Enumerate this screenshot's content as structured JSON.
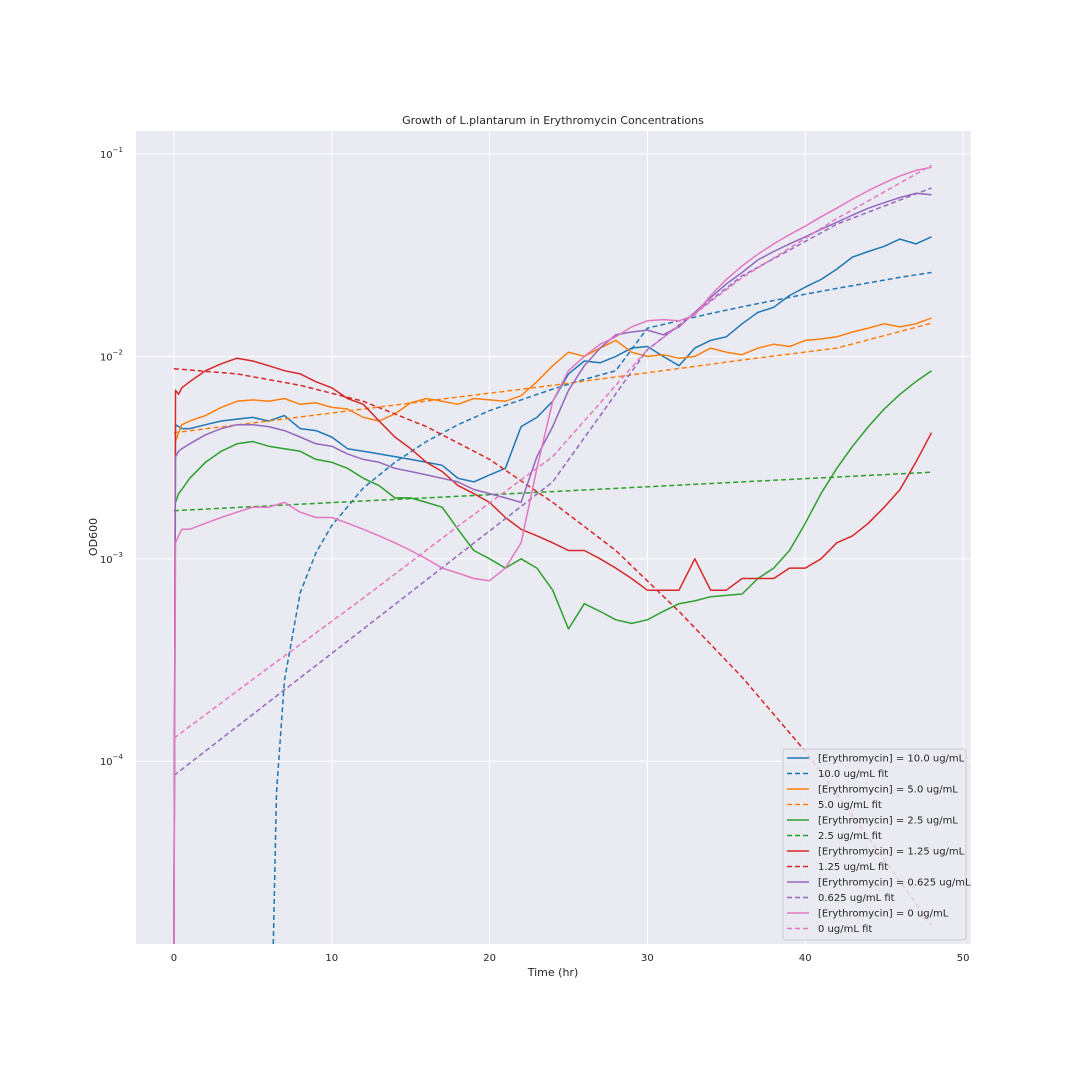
{
  "chart_data": {
    "type": "line",
    "title": "Growth of L.plantarum in Erythromycin Concentrations",
    "xlabel": "Time (hr)",
    "ylabel": "OD600",
    "xlim": [
      -2.4,
      50.5
    ],
    "ylim": [
      1.25e-05,
      0.13
    ],
    "y_scale": "log",
    "x_ticks": [
      0,
      10,
      20,
      30,
      40,
      50
    ],
    "x_tick_labels": [
      "0",
      "10",
      "20",
      "30",
      "40",
      "50"
    ],
    "y_ticks": [
      0.0001,
      0.001,
      0.01,
      0.1
    ],
    "y_tick_labels": [
      {
        "base": "10",
        "exp": "−4"
      },
      {
        "base": "10",
        "exp": "−3"
      },
      {
        "base": "10",
        "exp": "−2"
      },
      {
        "base": "10",
        "exp": "−1"
      }
    ],
    "grid": true,
    "legend_position": "lower right",
    "colors": {
      "blue": "#1f77b4",
      "orange": "#ff7f0e",
      "green": "#2ca02c",
      "red": "#d62728",
      "purple": "#9467bd",
      "pink": "#e377c2",
      "axes_bg": "#eaeaf2",
      "grid": "#ffffff"
    },
    "series": [
      {
        "name": "[Erythromycin] = 10.0 ug/mL",
        "color": "#1f77b4",
        "style": "solid",
        "x": [
          0,
          0.1,
          0.3,
          0.5,
          1,
          2,
          3,
          4,
          5,
          6,
          7,
          8,
          9,
          10,
          11,
          12,
          13,
          14,
          15,
          16,
          17,
          18,
          19,
          20,
          21,
          22,
          23,
          24,
          25,
          26,
          27,
          28,
          29,
          30,
          31,
          32,
          33,
          34,
          35,
          36,
          37,
          38,
          39,
          40,
          41,
          42,
          43,
          44,
          45,
          46,
          47,
          48
        ],
        "y": [
          1.25e-05,
          0.0046,
          0.0045,
          0.0044,
          0.0044,
          0.0046,
          0.0048,
          0.0049,
          0.005,
          0.0048,
          0.0051,
          0.0044,
          0.0043,
          0.004,
          0.0035,
          0.0034,
          0.0033,
          0.0032,
          0.0031,
          0.003,
          0.0029,
          0.0025,
          0.0024,
          0.0026,
          0.0028,
          0.0045,
          0.005,
          0.006,
          0.0082,
          0.0095,
          0.0093,
          0.01,
          0.011,
          0.0112,
          0.01,
          0.009,
          0.011,
          0.012,
          0.0125,
          0.0145,
          0.0165,
          0.0175,
          0.02,
          0.022,
          0.024,
          0.027,
          0.031,
          0.033,
          0.035,
          0.038,
          0.036,
          0.039
        ]
      },
      {
        "name": "10.0 ug/mL fit",
        "color": "#1f77b4",
        "style": "dashed",
        "x": [
          6.3,
          6.5,
          7,
          8,
          9,
          10,
          12,
          14,
          16,
          18,
          20,
          22,
          24,
          26,
          28,
          30,
          32,
          34,
          36,
          38,
          40,
          42,
          44,
          46,
          48
        ],
        "y": [
          1.25e-05,
          7e-05,
          0.00025,
          0.00068,
          0.00107,
          0.00146,
          0.00224,
          0.003,
          0.0038,
          0.0046,
          0.0054,
          0.0061,
          0.0069,
          0.0077,
          0.0085,
          0.0138,
          0.015,
          0.0163,
          0.0176,
          0.0189,
          0.0203,
          0.0217,
          0.0231,
          0.0246,
          0.026
        ]
      },
      {
        "name": "[Erythromycin] = 5.0 ug/mL",
        "color": "#ff7f0e",
        "style": "solid",
        "x": [
          0.1,
          0.3,
          0.5,
          1,
          2,
          3,
          4,
          5,
          6,
          7,
          8,
          9,
          10,
          11,
          12,
          13,
          14,
          15,
          16,
          17,
          18,
          19,
          20,
          21,
          22,
          23,
          24,
          25,
          26,
          27,
          28,
          29,
          30,
          31,
          32,
          33,
          34,
          35,
          36,
          37,
          38,
          39,
          40,
          41,
          42,
          43,
          44,
          45,
          46,
          47,
          48
        ],
        "y": [
          0.0038,
          0.0042,
          0.0046,
          0.0048,
          0.0051,
          0.0056,
          0.006,
          0.0061,
          0.006,
          0.0062,
          0.0058,
          0.0059,
          0.0056,
          0.0055,
          0.005,
          0.0048,
          0.0052,
          0.0059,
          0.0062,
          0.006,
          0.0058,
          0.0062,
          0.0061,
          0.006,
          0.0064,
          0.0075,
          0.009,
          0.0105,
          0.01,
          0.011,
          0.012,
          0.0105,
          0.01,
          0.0102,
          0.0098,
          0.01,
          0.011,
          0.0105,
          0.0102,
          0.011,
          0.0115,
          0.0112,
          0.012,
          0.0122,
          0.0125,
          0.0132,
          0.0138,
          0.0145,
          0.014,
          0.0145,
          0.0155
        ]
      },
      {
        "name": "5.0 ug/mL fit",
        "color": "#ff7f0e",
        "style": "dashed",
        "x": [
          0,
          6,
          12,
          18,
          24,
          30,
          36,
          42,
          48
        ],
        "y": [
          0.0042,
          0.0048,
          0.0055,
          0.0063,
          0.0072,
          0.0083,
          0.0096,
          0.011,
          0.0146
        ]
      },
      {
        "name": "[Erythromycin] = 2.5 ug/mL",
        "color": "#2ca02c",
        "style": "solid",
        "x": [
          0.1,
          0.3,
          0.5,
          1,
          2,
          3,
          4,
          5,
          6,
          7,
          8,
          9,
          10,
          11,
          12,
          13,
          14,
          15,
          16,
          17,
          18,
          19,
          20,
          21,
          22,
          23,
          24,
          25,
          26,
          27,
          28,
          29,
          30,
          31,
          32,
          33,
          34,
          35,
          36,
          37,
          38,
          39,
          40,
          41,
          42,
          43,
          44,
          45,
          46,
          47,
          48
        ],
        "y": [
          0.0019,
          0.0021,
          0.0022,
          0.0025,
          0.003,
          0.0034,
          0.0037,
          0.0038,
          0.0036,
          0.0035,
          0.0034,
          0.0031,
          0.003,
          0.0028,
          0.0025,
          0.0023,
          0.002,
          0.002,
          0.0019,
          0.0018,
          0.0014,
          0.0011,
          0.001,
          0.0009,
          0.001,
          0.0009,
          0.0007,
          0.00045,
          0.0006,
          0.00055,
          0.0005,
          0.00048,
          0.0005,
          0.00055,
          0.0006,
          0.00062,
          0.00065,
          0.00066,
          0.00067,
          0.0008,
          0.0009,
          0.0011,
          0.0015,
          0.0021,
          0.0028,
          0.0036,
          0.0045,
          0.0055,
          0.0065,
          0.0075,
          0.0085
        ]
      },
      {
        "name": "2.5 ug/mL fit",
        "color": "#2ca02c",
        "style": "dashed",
        "x": [
          0,
          12,
          24,
          36,
          48
        ],
        "y": [
          0.00173,
          0.00193,
          0.00215,
          0.0024,
          0.00268
        ]
      },
      {
        "name": "[Erythromycin] = 1.25 ug/mL",
        "color": "#d62728",
        "style": "solid",
        "x": [
          0,
          0.1,
          0.3,
          0.5,
          1,
          2,
          3,
          4,
          5,
          6,
          7,
          8,
          9,
          10,
          11,
          12,
          13,
          14,
          15,
          16,
          17,
          18,
          19,
          20,
          21,
          22,
          23,
          24,
          25,
          26,
          27,
          28,
          29,
          30,
          31,
          32,
          33,
          34,
          35,
          36,
          37,
          38,
          39,
          40,
          41,
          42,
          43,
          44,
          45,
          46,
          47,
          48
        ],
        "y": [
          1.25e-05,
          0.0068,
          0.0065,
          0.007,
          0.0075,
          0.0085,
          0.0092,
          0.0098,
          0.0095,
          0.009,
          0.0085,
          0.0082,
          0.0075,
          0.007,
          0.0062,
          0.0058,
          0.0048,
          0.004,
          0.0035,
          0.003,
          0.0027,
          0.0023,
          0.0021,
          0.0019,
          0.0016,
          0.0014,
          0.0013,
          0.0012,
          0.0011,
          0.0011,
          0.001,
          0.0009,
          0.0008,
          0.0007,
          0.0007,
          0.0007,
          0.001,
          0.0007,
          0.0007,
          0.0008,
          0.0008,
          0.0008,
          0.0009,
          0.0009,
          0.001,
          0.0012,
          0.0013,
          0.0015,
          0.0018,
          0.0022,
          0.003,
          0.0042
        ]
      },
      {
        "name": "1.25 ug/mL fit",
        "color": "#d62728",
        "style": "dashed",
        "x": [
          0,
          4,
          8,
          12,
          16,
          20,
          24,
          28,
          32,
          36,
          40,
          44,
          48
        ],
        "y": [
          0.0087,
          0.0082,
          0.0072,
          0.006,
          0.0045,
          0.0031,
          0.0019,
          0.0011,
          0.00055,
          0.00026,
          0.000112,
          4.2e-05,
          1.55e-05
        ]
      },
      {
        "name": "[Erythromycin] = 0.625 ug/mL",
        "color": "#9467bd",
        "style": "solid",
        "x": [
          0,
          0.1,
          0.3,
          0.5,
          1,
          2,
          3,
          4,
          5,
          6,
          7,
          8,
          9,
          10,
          11,
          12,
          13,
          14,
          15,
          16,
          17,
          18,
          19,
          20,
          21,
          22,
          23,
          24,
          25,
          26,
          27,
          28,
          29,
          30,
          31,
          32,
          33,
          34,
          35,
          36,
          37,
          38,
          39,
          40,
          41,
          42,
          43,
          44,
          45,
          46,
          47,
          48
        ],
        "y": [
          1.25e-05,
          0.0032,
          0.0034,
          0.0035,
          0.0037,
          0.0041,
          0.0044,
          0.0046,
          0.0046,
          0.0045,
          0.0043,
          0.004,
          0.0037,
          0.0036,
          0.0033,
          0.0031,
          0.003,
          0.0028,
          0.0027,
          0.0026,
          0.0025,
          0.0024,
          0.0022,
          0.0021,
          0.002,
          0.0019,
          0.0032,
          0.0045,
          0.0068,
          0.009,
          0.011,
          0.0128,
          0.0132,
          0.0135,
          0.0128,
          0.014,
          0.0165,
          0.0195,
          0.0228,
          0.026,
          0.03,
          0.033,
          0.036,
          0.039,
          0.0425,
          0.046,
          0.05,
          0.054,
          0.0575,
          0.061,
          0.064,
          0.063
        ]
      },
      {
        "name": "0.625 ug/mL fit",
        "color": "#9467bd",
        "style": "dashed",
        "x": [
          0,
          6,
          12,
          18,
          24,
          30,
          36,
          42,
          48
        ],
        "y": [
          8.5e-05,
          0.000196,
          0.00045,
          0.00104,
          0.0024,
          0.0108,
          0.025,
          0.045,
          0.068
        ]
      },
      {
        "name": "[Erythromycin] = 0 ug/mL",
        "color": "#e377c2",
        "style": "solid",
        "x": [
          0,
          0.1,
          0.3,
          0.5,
          1,
          2,
          3,
          4,
          5,
          6,
          7,
          8,
          9,
          10,
          11,
          12,
          13,
          14,
          15,
          16,
          17,
          18,
          19,
          20,
          21,
          22,
          23,
          24,
          25,
          26,
          27,
          28,
          29,
          30,
          31,
          32,
          33,
          34,
          35,
          36,
          37,
          38,
          39,
          40,
          41,
          42,
          43,
          44,
          45,
          46,
          47,
          48
        ],
        "y": [
          1.25e-05,
          0.0012,
          0.0013,
          0.0014,
          0.0014,
          0.0015,
          0.0016,
          0.0017,
          0.0018,
          0.0018,
          0.0019,
          0.0017,
          0.0016,
          0.0016,
          0.0015,
          0.0014,
          0.0013,
          0.0012,
          0.0011,
          0.001,
          0.0009,
          0.00085,
          0.0008,
          0.00078,
          0.0009,
          0.0012,
          0.0028,
          0.006,
          0.0085,
          0.01,
          0.0115,
          0.0125,
          0.014,
          0.015,
          0.0152,
          0.015,
          0.016,
          0.02,
          0.024,
          0.028,
          0.032,
          0.036,
          0.04,
          0.044,
          0.049,
          0.054,
          0.06,
          0.066,
          0.072,
          0.078,
          0.083,
          0.086
        ]
      },
      {
        "name": "0 ug/mL fit",
        "color": "#e377c2",
        "style": "dashed",
        "x": [
          0,
          6,
          12,
          18,
          24,
          30,
          36,
          42,
          48
        ],
        "y": [
          0.00013,
          0.00029,
          0.00064,
          0.00145,
          0.0032,
          0.0108,
          0.0245,
          0.048,
          0.088
        ]
      }
    ]
  }
}
